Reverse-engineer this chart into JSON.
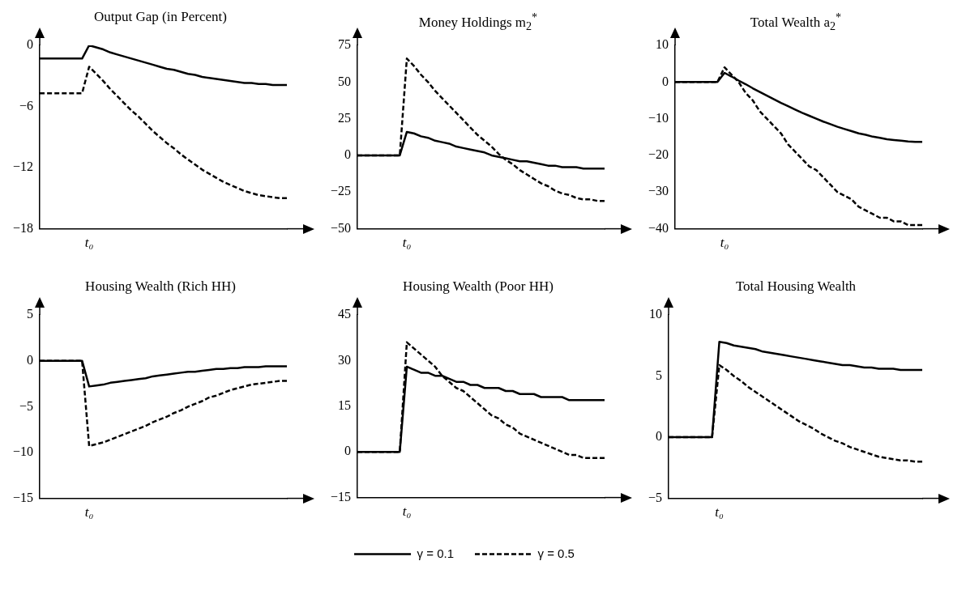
{
  "chart_data": [
    {
      "type": "line",
      "title": "Output Gap (in Percent)",
      "categories": [
        null,
        null,
        null,
        null,
        null,
        null,
        null,
        "t₀",
        null,
        null,
        null,
        null,
        null,
        null,
        null,
        null,
        null,
        null,
        null,
        null,
        null,
        null,
        null,
        null,
        null,
        null,
        null,
        null,
        null,
        null,
        null,
        null,
        null,
        null,
        null,
        null
      ],
      "ylim": [
        -18,
        0
      ],
      "yticks": [
        {
          "value": -18,
          "label": "−18"
        },
        {
          "value": -12,
          "label": "−12"
        },
        {
          "value": -6,
          "label": "−6"
        },
        0
      ],
      "grid": false,
      "legend": false,
      "series": [
        {
          "color": "#000000",
          "line_style": "solid",
          "values": [
            -1.3,
            -1.3,
            -1.3,
            -1.3,
            -1.3,
            -1.3,
            -1.3,
            0,
            -0.2,
            -0.4,
            -0.7,
            -0.9,
            -1.1,
            -1.3,
            -1.5,
            -1.7,
            -1.9,
            -2.1,
            -2.3,
            -2.4,
            -2.6,
            -2.8,
            -2.9,
            -3.1,
            -3.2,
            -3.3,
            -3.4,
            -3.5,
            -3.6,
            -3.7,
            -3.7,
            -3.8,
            -3.8,
            -3.9,
            -3.9,
            -3.9
          ]
        },
        {
          "color": "#000000",
          "line_style": "dashed",
          "values": [
            -4.7,
            -4.7,
            -4.7,
            -4.7,
            -4.7,
            -4.7,
            -4.7,
            -2.1,
            -2.8,
            -3.5,
            -4.3,
            -5.0,
            -5.7,
            -6.4,
            -7.0,
            -7.7,
            -8.4,
            -9.0,
            -9.6,
            -10.1,
            -10.7,
            -11.2,
            -11.7,
            -12.2,
            -12.6,
            -13.0,
            -13.4,
            -13.7,
            -14.0,
            -14.3,
            -14.5,
            -14.7,
            -14.8,
            -14.9,
            -15.0,
            -15.0
          ]
        }
      ]
    },
    {
      "type": "line",
      "title": "Money Holdings m$_{2}$$^{*}$",
      "categories": [
        null,
        null,
        null,
        null,
        null,
        null,
        null,
        "t₀",
        null,
        null,
        null,
        null,
        null,
        null,
        null,
        null,
        null,
        null,
        null,
        null,
        null,
        null,
        null,
        null,
        null,
        null,
        null,
        null,
        null,
        null,
        null,
        null,
        null,
        null,
        null,
        null
      ],
      "ylim": [
        -50,
        75
      ],
      "yticks": [
        {
          "value": -50,
          "label": "−50"
        },
        {
          "value": -25,
          "label": "−25"
        },
        0,
        25,
        50,
        75
      ],
      "grid": false,
      "legend": false,
      "series": [
        {
          "color": "#000000",
          "line_style": "solid",
          "values": [
            0,
            0,
            0,
            0,
            0,
            0,
            0,
            16,
            15,
            13,
            12,
            10,
            9,
            8,
            6,
            5,
            4,
            3,
            2,
            0,
            -1,
            -2,
            -3,
            -4,
            -4,
            -5,
            -6,
            -7,
            -7,
            -8,
            -8,
            -8,
            -9,
            -9,
            -9,
            -9
          ]
        },
        {
          "color": "#000000",
          "line_style": "dashed",
          "values": [
            0,
            0,
            0,
            0,
            0,
            0,
            0,
            66,
            61,
            55,
            50,
            44,
            39,
            34,
            29,
            24,
            19,
            14,
            10,
            6,
            1,
            -3,
            -6,
            -10,
            -13,
            -16,
            -19,
            -21,
            -24,
            -26,
            -27,
            -29,
            -30,
            -30,
            -31,
            -31
          ]
        }
      ]
    },
    {
      "type": "line",
      "title": "Total Wealth a$_{2}$$^{*}$",
      "categories": [
        null,
        null,
        null,
        null,
        null,
        null,
        null,
        "t₀",
        null,
        null,
        null,
        null,
        null,
        null,
        null,
        null,
        null,
        null,
        null,
        null,
        null,
        null,
        null,
        null,
        null,
        null,
        null,
        null,
        null,
        null,
        null,
        null,
        null,
        null,
        null,
        null
      ],
      "ylim": [
        -40,
        10
      ],
      "yticks": [
        {
          "value": -40,
          "label": "−40"
        },
        {
          "value": -30,
          "label": "−30"
        },
        {
          "value": -20,
          "label": "−20"
        },
        {
          "value": -10,
          "label": "−10"
        },
        0,
        10
      ],
      "grid": false,
      "legend": false,
      "series": [
        {
          "color": "#000000",
          "line_style": "solid",
          "values": [
            0,
            0,
            0,
            0,
            0,
            0,
            0,
            2.5,
            1.5,
            0.4,
            -0.6,
            -1.7,
            -2.7,
            -3.7,
            -4.7,
            -5.7,
            -6.6,
            -7.5,
            -8.4,
            -9.2,
            -10.0,
            -10.8,
            -11.5,
            -12.2,
            -12.8,
            -13.4,
            -14.0,
            -14.4,
            -14.9,
            -15.2,
            -15.6,
            -15.8,
            -16.0,
            -16.2,
            -16.3,
            -16.3
          ]
        },
        {
          "color": "#000000",
          "line_style": "dashed",
          "values": [
            0,
            0,
            0,
            0,
            0,
            0,
            0,
            4,
            2,
            0,
            -3,
            -5,
            -8,
            -10,
            -12,
            -14,
            -17,
            -19,
            -21,
            -23,
            -24,
            -26,
            -28,
            -30,
            -31,
            -32,
            -34,
            -35,
            -36,
            -37,
            -37,
            -38,
            -38,
            -39,
            -39,
            -39
          ]
        }
      ]
    },
    {
      "type": "line",
      "title": "Housing Wealth (Rich HH)",
      "categories": [
        null,
        null,
        null,
        null,
        null,
        null,
        null,
        "t₀",
        null,
        null,
        null,
        null,
        null,
        null,
        null,
        null,
        null,
        null,
        null,
        null,
        null,
        null,
        null,
        null,
        null,
        null,
        null,
        null,
        null,
        null,
        null,
        null,
        null,
        null,
        null,
        null
      ],
      "ylim": [
        -15,
        5
      ],
      "yticks": [
        {
          "value": -15,
          "label": "−15"
        },
        {
          "value": -10,
          "label": "−10"
        },
        {
          "value": -5,
          "label": "−5"
        },
        0,
        5
      ],
      "grid": false,
      "legend": false,
      "series": [
        {
          "color": "#000000",
          "line_style": "solid",
          "values": [
            0,
            0,
            0,
            0,
            0,
            0,
            0,
            -2.8,
            -2.7,
            -2.6,
            -2.4,
            -2.3,
            -2.2,
            -2.1,
            -2.0,
            -1.9,
            -1.7,
            -1.6,
            -1.5,
            -1.4,
            -1.3,
            -1.2,
            -1.2,
            -1.1,
            -1.0,
            -0.9,
            -0.9,
            -0.8,
            -0.8,
            -0.7,
            -0.7,
            -0.7,
            -0.6,
            -0.6,
            -0.6,
            -0.6
          ]
        },
        {
          "color": "#000000",
          "line_style": "dashed",
          "values": [
            0,
            0,
            0,
            0,
            0,
            0,
            0,
            -9.3,
            -9.1,
            -8.9,
            -8.6,
            -8.3,
            -8.0,
            -7.7,
            -7.4,
            -7.1,
            -6.7,
            -6.4,
            -6.1,
            -5.7,
            -5.4,
            -5.0,
            -4.7,
            -4.4,
            -4.0,
            -3.8,
            -3.5,
            -3.2,
            -3.0,
            -2.8,
            -2.6,
            -2.5,
            -2.4,
            -2.3,
            -2.2,
            -2.2
          ]
        }
      ]
    },
    {
      "type": "line",
      "title": "Housing Wealth (Poor HH)",
      "categories": [
        null,
        null,
        null,
        null,
        null,
        null,
        null,
        "t₀",
        null,
        null,
        null,
        null,
        null,
        null,
        null,
        null,
        null,
        null,
        null,
        null,
        null,
        null,
        null,
        null,
        null,
        null,
        null,
        null,
        null,
        null,
        null,
        null,
        null,
        null,
        null,
        null
      ],
      "ylim": [
        -15,
        45
      ],
      "yticks": [
        {
          "value": -15,
          "label": "−15"
        },
        0,
        15,
        30,
        45
      ],
      "grid": false,
      "legend": "bottom",
      "series": [
        {
          "name": "γ = 0.1",
          "color": "#000000",
          "line_style": "solid",
          "values": [
            0,
            0,
            0,
            0,
            0,
            0,
            0,
            28,
            27,
            26,
            26,
            25,
            25,
            24,
            23,
            23,
            22,
            22,
            21,
            21,
            21,
            20,
            20,
            19,
            19,
            19,
            18,
            18,
            18,
            18,
            17,
            17,
            17,
            17,
            17,
            17
          ]
        },
        {
          "name": "γ = 0.5",
          "color": "#000000",
          "line_style": "dashed",
          "values": [
            0,
            0,
            0,
            0,
            0,
            0,
            0,
            36,
            34,
            32,
            30,
            28,
            25,
            23,
            21,
            20,
            18,
            16,
            14,
            12,
            11,
            9,
            8,
            6,
            5,
            4,
            3,
            2,
            1,
            0,
            -1,
            -1,
            -2,
            -2,
            -2,
            -2
          ]
        }
      ]
    },
    {
      "type": "line",
      "title": "Total Housing Wealth",
      "categories": [
        null,
        null,
        null,
        null,
        null,
        null,
        null,
        "t₀",
        null,
        null,
        null,
        null,
        null,
        null,
        null,
        null,
        null,
        null,
        null,
        null,
        null,
        null,
        null,
        null,
        null,
        null,
        null,
        null,
        null,
        null,
        null,
        null,
        null,
        null,
        null,
        null
      ],
      "ylim": [
        -5,
        10
      ],
      "yticks": [
        {
          "value": -5,
          "label": "−5"
        },
        0,
        5,
        10
      ],
      "grid": false,
      "legend": false,
      "series": [
        {
          "color": "#000000",
          "line_style": "solid",
          "values": [
            0,
            0,
            0,
            0,
            0,
            0,
            0,
            7.8,
            7.7,
            7.5,
            7.4,
            7.3,
            7.2,
            7.0,
            6.9,
            6.8,
            6.7,
            6.6,
            6.5,
            6.4,
            6.3,
            6.2,
            6.1,
            6.0,
            5.9,
            5.9,
            5.8,
            5.7,
            5.7,
            5.6,
            5.6,
            5.6,
            5.5,
            5.5,
            5.5,
            5.5
          ]
        },
        {
          "color": "#000000",
          "line_style": "dashed",
          "values": [
            0,
            0,
            0,
            0,
            0,
            0,
            0,
            5.9,
            5.5,
            5.0,
            4.6,
            4.1,
            3.7,
            3.3,
            2.9,
            2.5,
            2.1,
            1.7,
            1.3,
            1.0,
            0.7,
            0.3,
            0.0,
            -0.3,
            -0.5,
            -0.8,
            -1.0,
            -1.2,
            -1.4,
            -1.6,
            -1.7,
            -1.8,
            -1.9,
            -1.9,
            -2.0,
            -2.0
          ]
        }
      ]
    }
  ]
}
